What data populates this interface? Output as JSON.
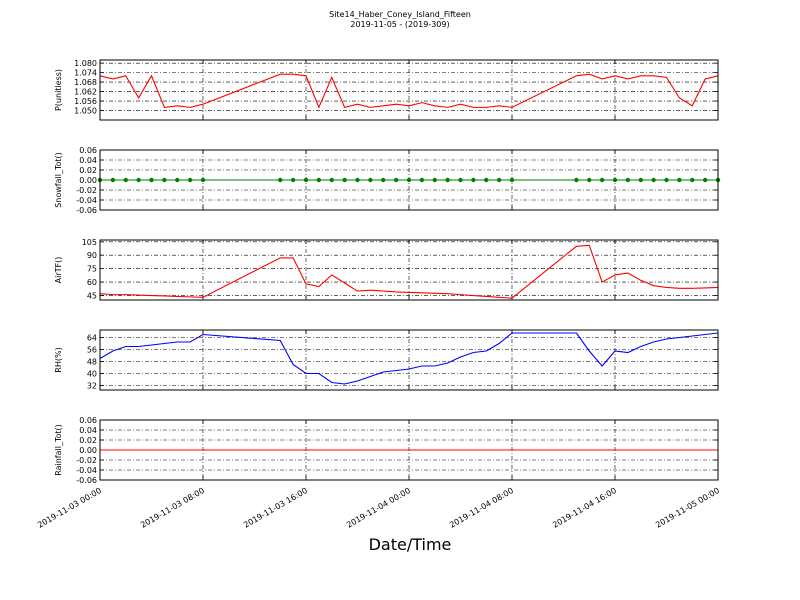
{
  "title": "Site14_Haber_Coney_Island_Fifteen",
  "subtitle": "2019-11-05 - (2019-309)",
  "xlabel": "Date/Time",
  "xlim": [
    "2019-11-03 00:00",
    "2019-11-05 00:00"
  ],
  "xticks": [
    "2019-11-03 00:00",
    "2019-11-03 08:00",
    "2019-11-03 16:00",
    "2019-11-04 00:00",
    "2019-11-04 08:00",
    "2019-11-04 16:00",
    "2019-11-05 00:00"
  ],
  "chart_data": [
    {
      "type": "line",
      "ylabel": "P(unitless)",
      "ylim": [
        1.044,
        1.082
      ],
      "yticks": [
        {
          "value": 1.05,
          "label": "1.050"
        },
        {
          "value": 1.056,
          "label": "1.056"
        },
        {
          "value": 1.062,
          "label": "1.062"
        },
        {
          "value": 1.068,
          "label": "1.068"
        },
        {
          "value": 1.074,
          "label": "1.074"
        },
        {
          "value": 1.08,
          "label": "1.080"
        }
      ],
      "grid": true,
      "x": [
        "2019-11-03 00:00",
        "2019-11-03 01:00",
        "2019-11-03 02:00",
        "2019-11-03 03:00",
        "2019-11-03 04:00",
        "2019-11-03 05:00",
        "2019-11-03 06:00",
        "2019-11-03 07:00",
        "2019-11-03 08:00",
        "2019-11-03 14:00",
        "2019-11-03 15:00",
        "2019-11-03 16:00",
        "2019-11-03 17:00",
        "2019-11-03 18:00",
        "2019-11-03 19:00",
        "2019-11-03 20:00",
        "2019-11-03 21:00",
        "2019-11-03 22:00",
        "2019-11-03 23:00",
        "2019-11-04 00:00",
        "2019-11-04 01:00",
        "2019-11-04 02:00",
        "2019-11-04 03:00",
        "2019-11-04 04:00",
        "2019-11-04 05:00",
        "2019-11-04 06:00",
        "2019-11-04 07:00",
        "2019-11-04 08:00",
        "2019-11-04 13:00",
        "2019-11-04 14:00",
        "2019-11-04 15:00",
        "2019-11-04 16:00",
        "2019-11-04 17:00",
        "2019-11-04 18:00",
        "2019-11-04 19:00",
        "2019-11-04 20:00",
        "2019-11-04 21:00",
        "2019-11-04 22:00",
        "2019-11-04 23:00",
        "2019-11-05 00:00"
      ],
      "series": [
        {
          "color": "#ff0000",
          "values": [
            1.072,
            1.07,
            1.072,
            1.058,
            1.072,
            1.052,
            1.053,
            1.052,
            1.054,
            1.073,
            1.073,
            1.072,
            1.052,
            1.071,
            1.052,
            1.054,
            1.052,
            1.053,
            1.054,
            1.053,
            1.055,
            1.053,
            1.052,
            1.054,
            1.052,
            1.052,
            1.053,
            1.052,
            1.072,
            1.073,
            1.07,
            1.072,
            1.07,
            1.072,
            1.072,
            1.071,
            1.058,
            1.053,
            1.07,
            1.072
          ]
        }
      ]
    },
    {
      "type": "line",
      "ylabel": "Snowfall_Tot()",
      "ylim": [
        -0.06,
        0.06
      ],
      "yticks": [
        {
          "value": -0.06,
          "label": "-0.06"
        },
        {
          "value": -0.04,
          "label": "-0.04"
        },
        {
          "value": -0.02,
          "label": "-0.02"
        },
        {
          "value": 0,
          "label": "0.00"
        },
        {
          "value": 0.02,
          "label": "0.02"
        },
        {
          "value": 0.04,
          "label": "0.04"
        },
        {
          "value": 0.06,
          "label": "0.06"
        }
      ],
      "grid": true,
      "markers": true,
      "x": [
        "2019-11-03 00:00",
        "2019-11-03 01:00",
        "2019-11-03 02:00",
        "2019-11-03 03:00",
        "2019-11-03 04:00",
        "2019-11-03 05:00",
        "2019-11-03 06:00",
        "2019-11-03 07:00",
        "2019-11-03 08:00",
        "2019-11-03 14:00",
        "2019-11-03 15:00",
        "2019-11-03 16:00",
        "2019-11-03 17:00",
        "2019-11-03 18:00",
        "2019-11-03 19:00",
        "2019-11-03 20:00",
        "2019-11-03 21:00",
        "2019-11-03 22:00",
        "2019-11-03 23:00",
        "2019-11-04 00:00",
        "2019-11-04 01:00",
        "2019-11-04 02:00",
        "2019-11-04 03:00",
        "2019-11-04 04:00",
        "2019-11-04 05:00",
        "2019-11-04 06:00",
        "2019-11-04 07:00",
        "2019-11-04 08:00",
        "2019-11-04 13:00",
        "2019-11-04 14:00",
        "2019-11-04 15:00",
        "2019-11-04 16:00",
        "2019-11-04 17:00",
        "2019-11-04 18:00",
        "2019-11-04 19:00",
        "2019-11-04 20:00",
        "2019-11-04 21:00",
        "2019-11-04 22:00",
        "2019-11-04 23:00",
        "2019-11-05 00:00"
      ],
      "series": [
        {
          "color": "#007f00",
          "values": [
            0,
            0,
            0,
            0,
            0,
            0,
            0,
            0,
            0,
            0,
            0,
            0,
            0,
            0,
            0,
            0,
            0,
            0,
            0,
            0,
            0,
            0,
            0,
            0,
            0,
            0,
            0,
            0,
            0,
            0,
            0,
            0,
            0,
            0,
            0,
            0,
            0,
            0,
            0,
            0
          ]
        }
      ]
    },
    {
      "type": "line",
      "ylabel": "AirTF()",
      "ylim": [
        40,
        107
      ],
      "yticks": [
        45,
        60,
        75,
        90,
        105
      ],
      "grid": true,
      "x": [
        "2019-11-03 00:00",
        "2019-11-03 01:00",
        "2019-11-03 02:00",
        "2019-11-03 03:00",
        "2019-11-03 04:00",
        "2019-11-03 05:00",
        "2019-11-03 06:00",
        "2019-11-03 07:00",
        "2019-11-03 08:00",
        "2019-11-03 14:00",
        "2019-11-03 15:00",
        "2019-11-03 16:00",
        "2019-11-03 17:00",
        "2019-11-03 18:00",
        "2019-11-03 19:00",
        "2019-11-03 20:00",
        "2019-11-03 21:00",
        "2019-11-03 22:00",
        "2019-11-03 23:00",
        "2019-11-04 00:00",
        "2019-11-04 01:00",
        "2019-11-04 02:00",
        "2019-11-04 03:00",
        "2019-11-04 04:00",
        "2019-11-04 05:00",
        "2019-11-04 06:00",
        "2019-11-04 07:00",
        "2019-11-04 08:00",
        "2019-11-04 13:00",
        "2019-11-04 14:00",
        "2019-11-04 15:00",
        "2019-11-04 16:00",
        "2019-11-04 17:00",
        "2019-11-04 18:00",
        "2019-11-04 19:00",
        "2019-11-04 20:00",
        "2019-11-04 21:00",
        "2019-11-04 22:00",
        "2019-11-04 23:00",
        "2019-11-05 00:00"
      ],
      "series": [
        {
          "color": "#ff0000",
          "values": [
            47,
            46,
            46,
            45.5,
            45,
            44.5,
            44,
            43.5,
            43,
            87,
            87,
            58,
            55,
            68,
            59,
            50,
            51,
            50,
            49,
            48.5,
            48,
            47.5,
            47,
            46,
            45,
            44,
            43,
            42,
            100,
            101,
            60,
            68,
            70,
            62,
            56,
            54,
            53,
            53,
            53.5,
            54
          ]
        }
      ]
    },
    {
      "type": "line",
      "ylabel": "RH(%)",
      "ylim": [
        29,
        69
      ],
      "yticks": [
        32,
        40,
        48,
        56,
        64
      ],
      "grid": true,
      "x": [
        "2019-11-03 00:00",
        "2019-11-03 01:00",
        "2019-11-03 02:00",
        "2019-11-03 03:00",
        "2019-11-03 04:00",
        "2019-11-03 05:00",
        "2019-11-03 06:00",
        "2019-11-03 07:00",
        "2019-11-03 08:00",
        "2019-11-03 14:00",
        "2019-11-03 15:00",
        "2019-11-03 16:00",
        "2019-11-03 17:00",
        "2019-11-03 18:00",
        "2019-11-03 19:00",
        "2019-11-03 20:00",
        "2019-11-03 21:00",
        "2019-11-03 22:00",
        "2019-11-03 23:00",
        "2019-11-04 00:00",
        "2019-11-04 01:00",
        "2019-11-04 02:00",
        "2019-11-04 03:00",
        "2019-11-04 04:00",
        "2019-11-04 05:00",
        "2019-11-04 06:00",
        "2019-11-04 07:00",
        "2019-11-04 08:00",
        "2019-11-04 13:00",
        "2019-11-04 14:00",
        "2019-11-04 15:00",
        "2019-11-04 16:00",
        "2019-11-04 17:00",
        "2019-11-04 18:00",
        "2019-11-04 19:00",
        "2019-11-04 20:00",
        "2019-11-04 21:00",
        "2019-11-04 22:00",
        "2019-11-04 23:00",
        "2019-11-05 00:00"
      ],
      "series": [
        {
          "color": "#0000ff",
          "values": [
            50,
            55,
            58,
            58,
            59,
            60,
            61,
            61,
            66,
            62,
            46,
            40,
            40,
            34,
            33,
            35,
            38,
            41,
            42,
            43,
            45,
            45,
            47,
            51,
            54,
            55,
            60,
            67,
            67,
            55,
            45,
            55,
            54,
            58,
            61,
            63,
            64,
            65,
            66,
            67
          ]
        }
      ]
    },
    {
      "type": "line",
      "ylabel": "Rainfall_Tot()",
      "ylim": [
        -0.06,
        0.06
      ],
      "yticks": [
        {
          "value": -0.06,
          "label": "-0.06"
        },
        {
          "value": -0.04,
          "label": "-0.04"
        },
        {
          "value": -0.02,
          "label": "-0.02"
        },
        {
          "value": 0,
          "label": "0.00"
        },
        {
          "value": 0.02,
          "label": "0.02"
        },
        {
          "value": 0.04,
          "label": "0.04"
        },
        {
          "value": 0.06,
          "label": "0.06"
        }
      ],
      "grid": true,
      "x": [
        "2019-11-03 00:00",
        "2019-11-03 01:00",
        "2019-11-03 02:00",
        "2019-11-03 03:00",
        "2019-11-03 04:00",
        "2019-11-03 05:00",
        "2019-11-03 06:00",
        "2019-11-03 07:00",
        "2019-11-03 08:00",
        "2019-11-03 14:00",
        "2019-11-03 15:00",
        "2019-11-03 16:00",
        "2019-11-03 17:00",
        "2019-11-03 18:00",
        "2019-11-03 19:00",
        "2019-11-03 20:00",
        "2019-11-03 21:00",
        "2019-11-03 22:00",
        "2019-11-03 23:00",
        "2019-11-04 00:00",
        "2019-11-04 01:00",
        "2019-11-04 02:00",
        "2019-11-04 03:00",
        "2019-11-04 04:00",
        "2019-11-04 05:00",
        "2019-11-04 06:00",
        "2019-11-04 07:00",
        "2019-11-04 08:00",
        "2019-11-04 13:00",
        "2019-11-04 14:00",
        "2019-11-04 15:00",
        "2019-11-04 16:00",
        "2019-11-04 17:00",
        "2019-11-04 18:00",
        "2019-11-04 19:00",
        "2019-11-04 20:00",
        "2019-11-04 21:00",
        "2019-11-04 22:00",
        "2019-11-04 23:00",
        "2019-11-05 00:00"
      ],
      "series": [
        {
          "color": "#ff0000",
          "values": [
            0,
            0,
            0,
            0,
            0,
            0,
            0,
            0,
            0,
            0,
            0,
            0,
            0,
            0,
            0,
            0,
            0,
            0,
            0,
            0,
            0,
            0,
            0,
            0,
            0,
            0,
            0,
            0,
            0,
            0,
            0,
            0,
            0,
            0,
            0,
            0,
            0,
            0,
            0,
            0
          ]
        }
      ]
    }
  ]
}
